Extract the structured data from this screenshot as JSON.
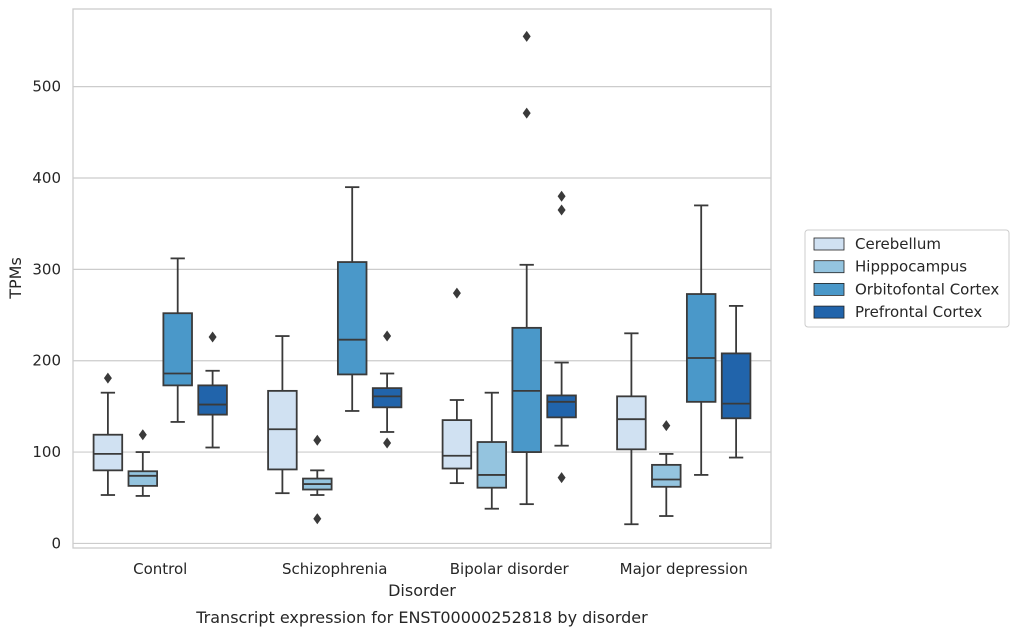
{
  "chart_data": {
    "type": "box",
    "title": "",
    "caption": "Transcript expression for ENST00000252818 by disorder",
    "xlabel": "Disorder",
    "ylabel": "TPMs",
    "ylim": [
      -5,
      585
    ],
    "yticks": [
      0,
      100,
      200,
      300,
      400,
      500
    ],
    "grid": "horizontal",
    "legend_position": "outside-right",
    "categories": [
      "Control",
      "Schizophrenia",
      "Bipolar disorder",
      "Major depression"
    ],
    "series": [
      {
        "name": "Cerebellum",
        "color": "#d0e1f2",
        "boxes": [
          {
            "whislo": 53,
            "q1": 80,
            "med": 98,
            "q3": 119,
            "whishi": 165,
            "fliers": [
              181
            ]
          },
          {
            "whislo": 55,
            "q1": 81,
            "med": 125,
            "q3": 167,
            "whishi": 227,
            "fliers": []
          },
          {
            "whislo": 66,
            "q1": 82,
            "med": 96,
            "q3": 135,
            "whishi": 157,
            "fliers": [
              274
            ]
          },
          {
            "whislo": 21,
            "q1": 103,
            "med": 136,
            "q3": 161,
            "whishi": 230,
            "fliers": []
          }
        ]
      },
      {
        "name": "Hipppocampus",
        "color": "#94c4df",
        "boxes": [
          {
            "whislo": 52,
            "q1": 63,
            "med": 74,
            "q3": 79,
            "whishi": 100,
            "fliers": [
              119
            ]
          },
          {
            "whislo": 53,
            "q1": 59,
            "med": 65,
            "q3": 71,
            "whishi": 80,
            "fliers": [
              113,
              27
            ]
          },
          {
            "whislo": 38,
            "q1": 61,
            "med": 75,
            "q3": 111,
            "whishi": 165,
            "fliers": []
          },
          {
            "whislo": 30,
            "q1": 62,
            "med": 70,
            "q3": 86,
            "whishi": 98,
            "fliers": [
              129
            ]
          }
        ]
      },
      {
        "name": "Orbitofontal Cortex",
        "color": "#4a98c9",
        "boxes": [
          {
            "whislo": 133,
            "q1": 173,
            "med": 186,
            "q3": 252,
            "whishi": 312,
            "fliers": []
          },
          {
            "whislo": 145,
            "q1": 185,
            "med": 223,
            "q3": 308,
            "whishi": 390,
            "fliers": []
          },
          {
            "whislo": 43,
            "q1": 100,
            "med": 167,
            "q3": 236,
            "whishi": 305,
            "fliers": [
              555,
              471
            ]
          },
          {
            "whislo": 75,
            "q1": 155,
            "med": 203,
            "q3": 273,
            "whishi": 370,
            "fliers": []
          }
        ]
      },
      {
        "name": "Prefrontal Cortex",
        "color": "#2164ab",
        "boxes": [
          {
            "whislo": 105,
            "q1": 141,
            "med": 152,
            "q3": 173,
            "whishi": 189,
            "fliers": [
              226
            ]
          },
          {
            "whislo": 122,
            "q1": 149,
            "med": 161,
            "q3": 170,
            "whishi": 186,
            "fliers": [
              227,
              110
            ]
          },
          {
            "whislo": 107,
            "q1": 138,
            "med": 155,
            "q3": 162,
            "whishi": 198,
            "fliers": [
              380,
              365,
              72
            ]
          },
          {
            "whislo": 94,
            "q1": 137,
            "med": 153,
            "q3": 208,
            "whishi": 260,
            "fliers": []
          }
        ]
      }
    ]
  }
}
